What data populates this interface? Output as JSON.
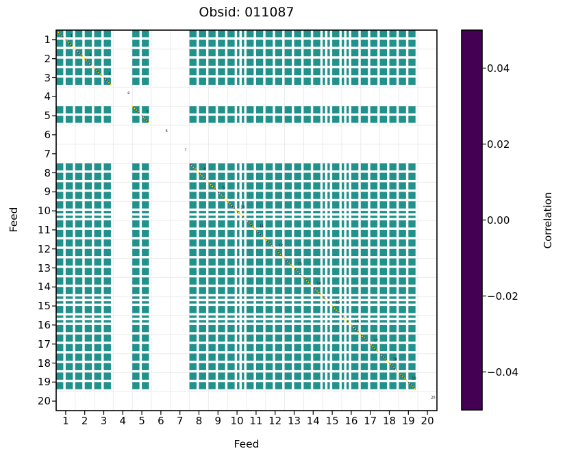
{
  "chart_data": {
    "type": "heatmap",
    "title": "Obsid: 011087",
    "xlabel": "Feed",
    "ylabel": "Feed",
    "x_ticks": [
      "1",
      "2",
      "3",
      "4",
      "5",
      "6",
      "7",
      "8",
      "9",
      "10",
      "11",
      "12",
      "13",
      "14",
      "15",
      "16",
      "17",
      "18",
      "19",
      "20"
    ],
    "y_ticks": [
      "1",
      "2",
      "3",
      "4",
      "5",
      "6",
      "7",
      "8",
      "9",
      "10",
      "11",
      "12",
      "13",
      "14",
      "15",
      "16",
      "17",
      "18",
      "19",
      "20"
    ],
    "n_feeds": 20,
    "channels_per_feed": 8,
    "feeds_missing": [
      4,
      6,
      7,
      20
    ],
    "feed_channel_mask": {
      "default": [
        1,
        1,
        1,
        0,
        1,
        1,
        1,
        0
      ],
      "4": [
        0,
        0,
        0,
        0,
        0,
        0,
        0,
        0
      ],
      "6": [
        0,
        0,
        0,
        0,
        0,
        0,
        0,
        0
      ],
      "7": [
        0,
        0,
        0,
        0,
        0,
        0,
        0,
        0
      ],
      "10": [
        1,
        1,
        1,
        0,
        1,
        0,
        1,
        0
      ],
      "15": [
        1,
        0,
        1,
        0,
        1,
        1,
        1,
        0
      ],
      "16": [
        1,
        0,
        1,
        0,
        1,
        1,
        1,
        0
      ],
      "20": [
        0,
        0,
        0,
        0,
        0,
        0,
        0,
        0
      ]
    },
    "diagonal_runs": [
      [
        1,
        3
      ],
      [
        5,
        5
      ],
      [
        8,
        19
      ]
    ],
    "diagonal_feed_labels": [
      "1",
      "2",
      "3",
      "4",
      "5",
      "6",
      "7",
      "8",
      "9",
      "10",
      "11",
      "12",
      "13",
      "14",
      "15",
      "16",
      "17",
      "18",
      "19",
      "20"
    ],
    "values": {
      "off_diagonal_correlation": 0.0,
      "diagonal_correlation": 1.0,
      "note": "off-diagonal cells sit at ~0.00 (viridis midpoint teal); diagonal saturates at vmax (yellow); masked feeds are blank"
    },
    "colors": {
      "cell": "#21918c",
      "diagonal_line": "#fde725",
      "diagonal_underlay": "#3a4168",
      "grid": "#ebebeb",
      "spine": "#000000",
      "tiny_label": "#16161d"
    },
    "colorbar": {
      "label": "Correlation",
      "ticks": [
        "0.04",
        "0.02",
        "0.00",
        "−0.02",
        "−0.04"
      ],
      "tick_values": [
        0.04,
        0.02,
        0.0,
        -0.02,
        -0.04
      ],
      "vmin": -0.05,
      "vmax": 0.05,
      "colormap": "viridis",
      "viridis_stops": [
        "#440154",
        "#46327e",
        "#365c8d",
        "#277f8e",
        "#21918c",
        "#1fa187",
        "#4ac16d",
        "#a0da39",
        "#fde725"
      ]
    },
    "layout": {
      "grid": true,
      "legend": false
    }
  }
}
